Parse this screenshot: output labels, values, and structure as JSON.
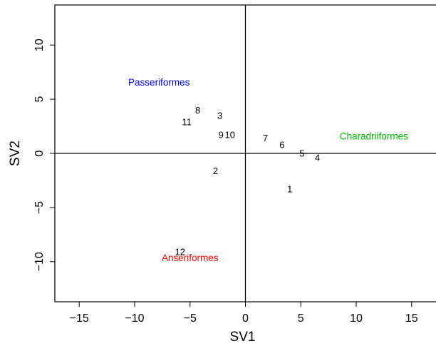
{
  "chart_data": {
    "type": "scatter",
    "title": "",
    "xlabel": "SV1",
    "ylabel": "SV2",
    "xlim": [
      -17.2,
      17.2
    ],
    "ylim": [
      -13.7,
      13.7
    ],
    "xticks": [
      -15,
      -10,
      -5,
      0,
      5,
      10,
      15
    ],
    "xtick_labels": [
      "−15",
      "−10",
      "−5",
      "0",
      "5",
      "10",
      "15"
    ],
    "yticks": [
      -10,
      -5,
      0,
      5,
      10
    ],
    "ytick_labels": [
      "−10",
      "−5",
      "0",
      "5",
      "10"
    ],
    "reference_lines": {
      "x": 0,
      "y": 0
    },
    "points": [
      {
        "label": "1",
        "x": 4.0,
        "y": -3.3
      },
      {
        "label": "2",
        "x": -2.7,
        "y": -1.6
      },
      {
        "label": "3",
        "x": -2.3,
        "y": 3.5
      },
      {
        "label": "4",
        "x": 6.5,
        "y": -0.4
      },
      {
        "label": "5",
        "x": 5.1,
        "y": 0.0
      },
      {
        "label": "6",
        "x": 3.3,
        "y": 0.8
      },
      {
        "label": "7",
        "x": 1.8,
        "y": 1.4
      },
      {
        "label": "8",
        "x": -4.3,
        "y": 4.0
      },
      {
        "label": "9",
        "x": -2.2,
        "y": 1.7
      },
      {
        "label": "10",
        "x": -1.4,
        "y": 1.7
      },
      {
        "label": "11",
        "x": -5.3,
        "y": 2.9
      },
      {
        "label": "12",
        "x": -5.9,
        "y": -9.1
      }
    ],
    "groups": [
      {
        "name": "Passeriformes",
        "x": -7.8,
        "y": 6.6,
        "color": "#0000ff"
      },
      {
        "name": "Charadriiformes",
        "x": 11.6,
        "y": 1.6,
        "color": "#00bb00"
      },
      {
        "name": "Anseriformes",
        "x": -5.0,
        "y": -9.6,
        "color": "#ff0000"
      }
    ]
  }
}
